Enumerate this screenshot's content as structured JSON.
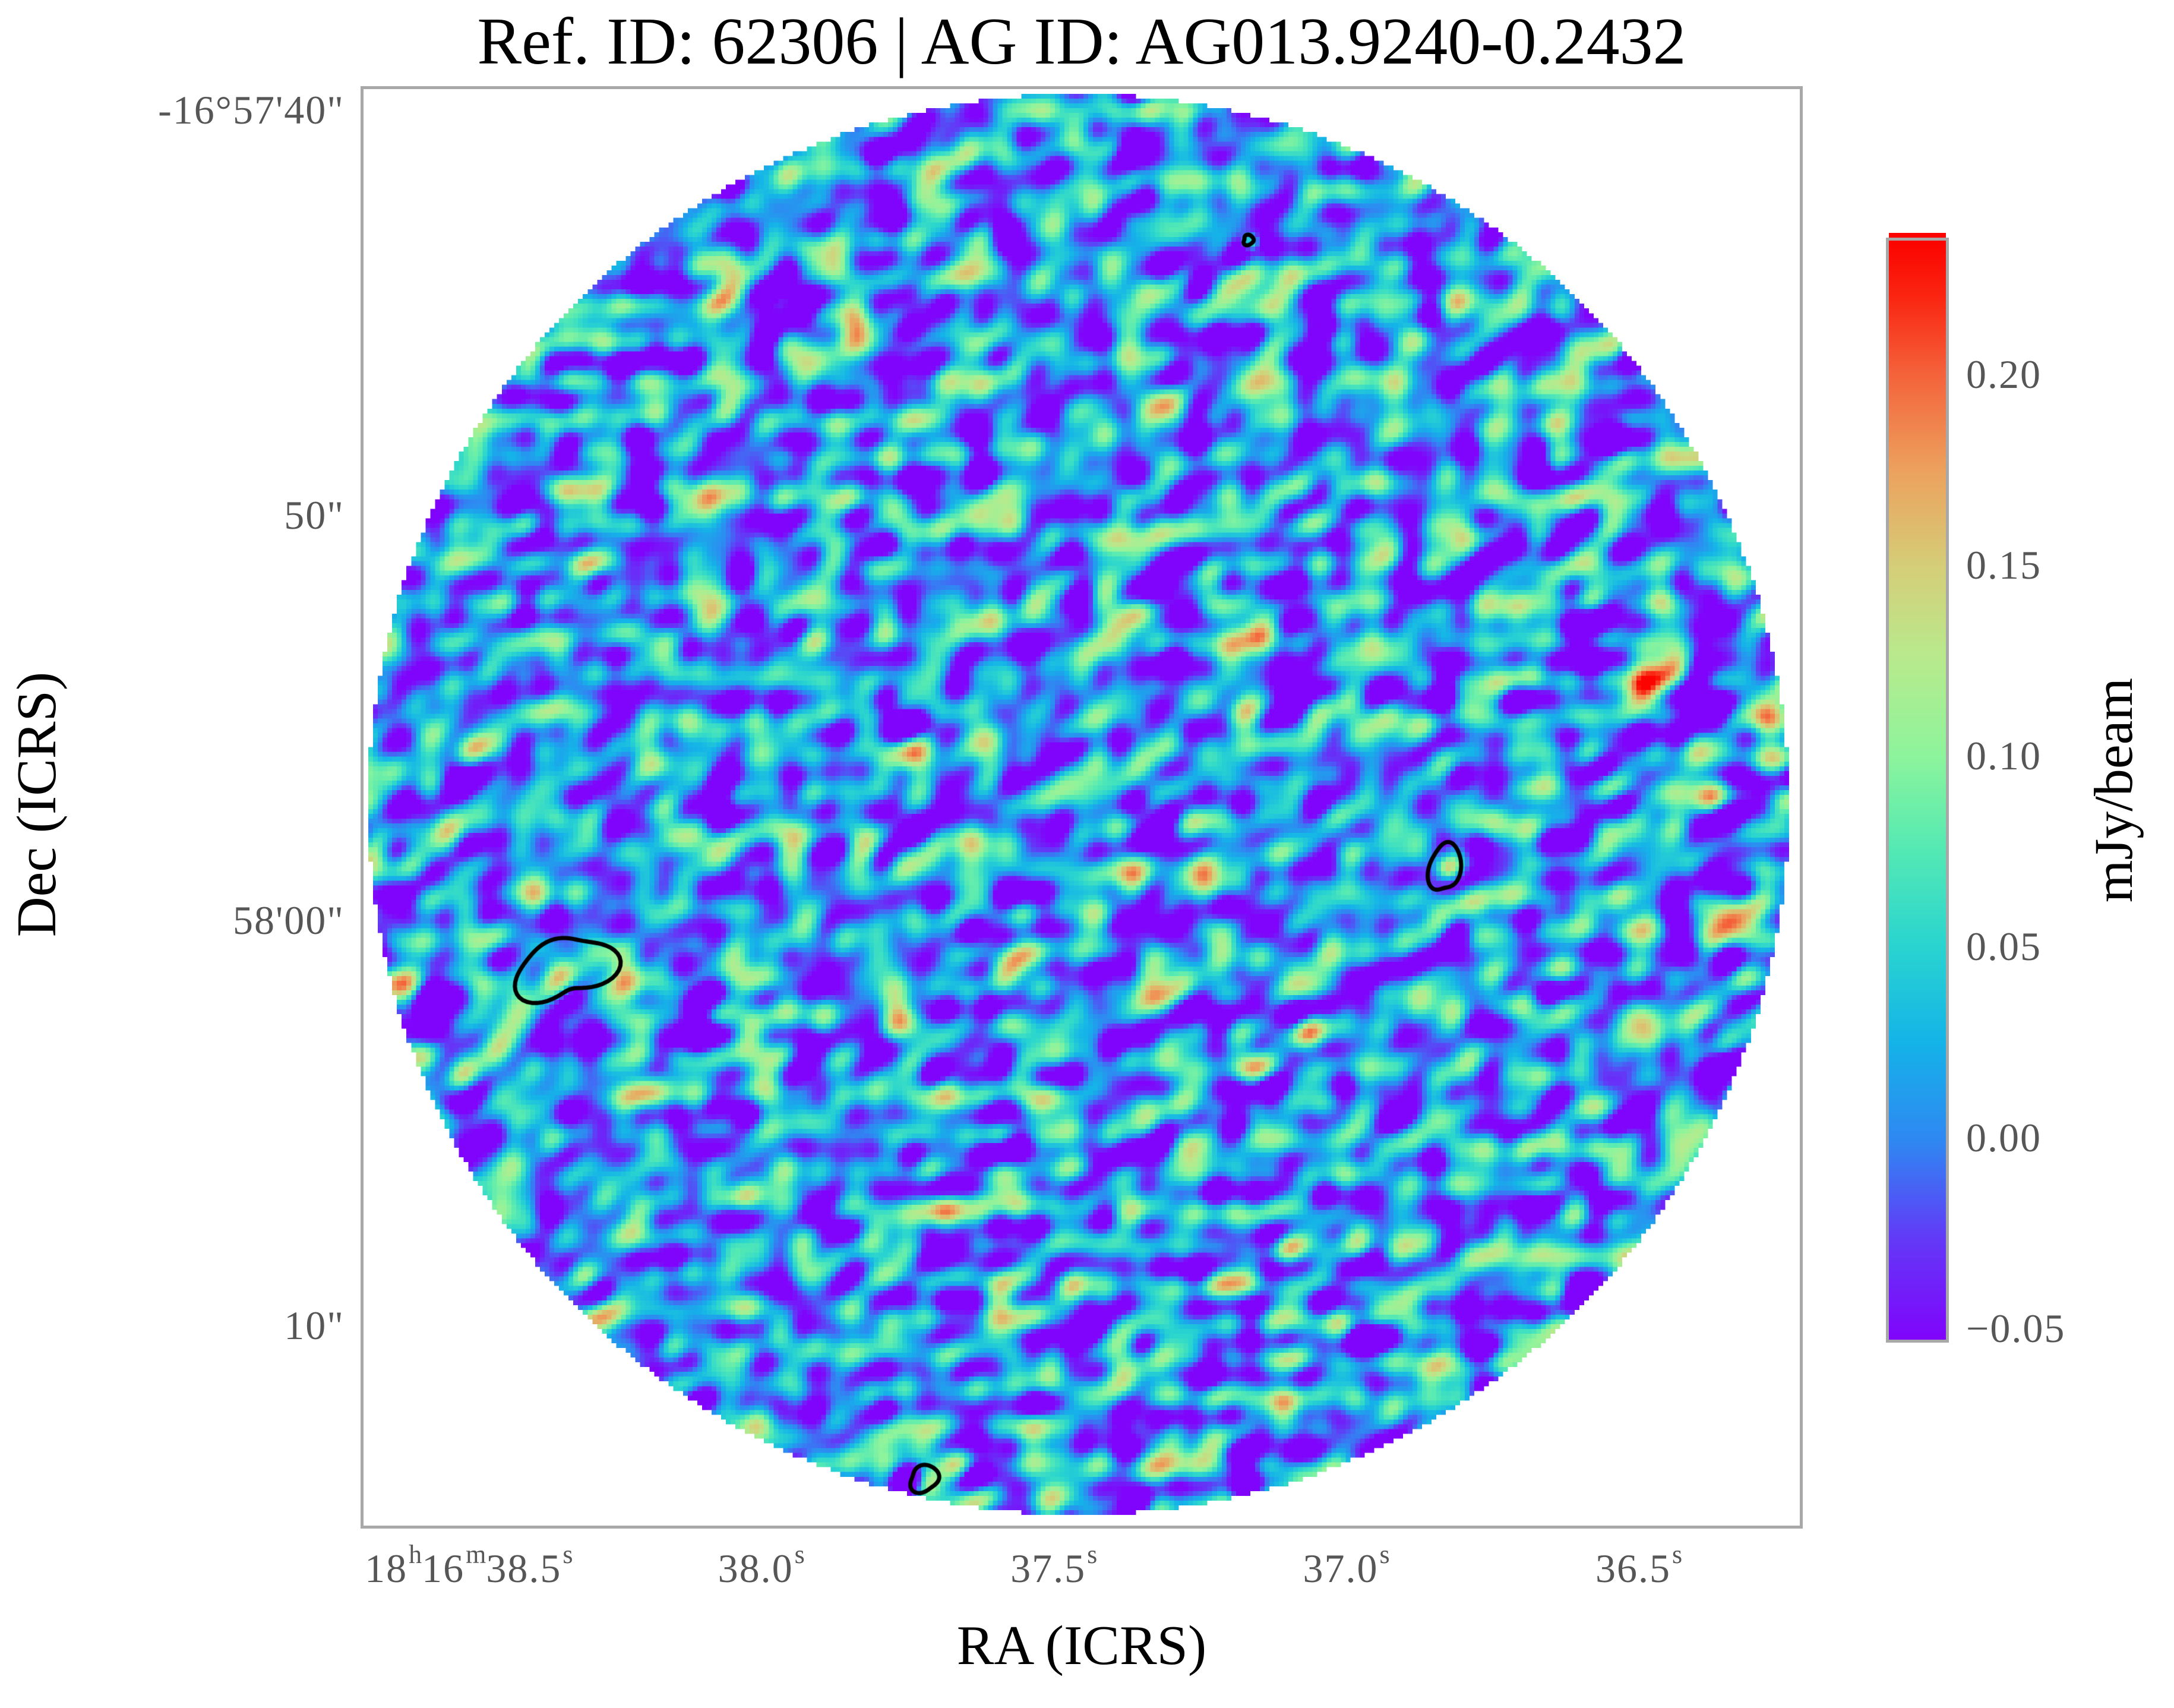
{
  "chart_data": {
    "type": "heatmap",
    "title": "Ref. ID: 62306 | AG ID: AG013.9240-0.2432",
    "xlabel": "RA (ICRS)",
    "ylabel": "Dec (ICRS)",
    "x_axis": {
      "unit": "RA seconds within 18h16m",
      "range": [
        38.68,
        36.235
      ],
      "ticks": [
        {
          "value": 38.5,
          "parts": [
            {
              "t": "18",
              "sup": "h"
            },
            {
              "t": "16",
              "sup": "m"
            },
            {
              "t": "38.5",
              "sup": "s"
            }
          ]
        },
        {
          "value": 38.0,
          "parts": [
            {
              "t": "38.0",
              "sup": "s"
            }
          ]
        },
        {
          "value": 37.5,
          "parts": [
            {
              "t": "37.5",
              "sup": "s"
            }
          ]
        },
        {
          "value": 37.0,
          "parts": [
            {
              "t": "37.0",
              "sup": "s"
            }
          ]
        },
        {
          "value": 36.5,
          "parts": [
            {
              "t": "36.5",
              "sup": "s"
            }
          ]
        }
      ]
    },
    "y_axis": {
      "unit": "Dec arcsec below -16deg57min",
      "range": [
        39.49,
        74.79
      ],
      "ticks": [
        {
          "value": 40,
          "label": "-16°57'40\""
        },
        {
          "value": 50,
          "label": "50\""
        },
        {
          "value": 60,
          "label": "58'00\""
        },
        {
          "value": 70,
          "label": "10\""
        }
      ]
    },
    "colorbar": {
      "label": "mJy/beam",
      "range_top": 0.235,
      "range_bottom": -0.053,
      "ticks": [
        {
          "value": 0.2,
          "label": "0.20"
        },
        {
          "value": 0.15,
          "label": "0.15"
        },
        {
          "value": 0.1,
          "label": "0.10"
        },
        {
          "value": 0.05,
          "label": "0.05"
        },
        {
          "value": 0.0,
          "label": "0.00"
        },
        {
          "value": -0.05,
          "label": "−0.05"
        }
      ]
    },
    "colormap_stops": [
      [
        0.0,
        "#8004fb"
      ],
      [
        0.09,
        "#6338f7"
      ],
      [
        0.18,
        "#2f87f2"
      ],
      [
        0.27,
        "#14b3e8"
      ],
      [
        0.36,
        "#2ad5cf"
      ],
      [
        0.45,
        "#56eab2"
      ],
      [
        0.53,
        "#8cf49c"
      ],
      [
        0.62,
        "#b8ea8d"
      ],
      [
        0.7,
        "#d4cf79"
      ],
      [
        0.79,
        "#eca25e"
      ],
      [
        0.88,
        "#f4613a"
      ],
      [
        0.95,
        "#fa2410"
      ],
      [
        1.0,
        "#fb0300"
      ]
    ],
    "field": {
      "grid": 300,
      "mean": 0.012,
      "sigma": 0.058,
      "seed": 20240613,
      "waves": 70,
      "min_wavelength": 7,
      "max_wavelength": 30,
      "fov_shape": "circle"
    },
    "contours": {
      "color": "#000000",
      "shapes": [
        {
          "fx": 0.1406,
          "fy": 0.6146,
          "rx": 24,
          "ry": 18,
          "rot": -20,
          "wobble": 0.35,
          "amp": 0.17,
          "sig": 3.0
        },
        {
          "fx": 0.756,
          "fy": 0.5438,
          "rx": 8,
          "ry": 14,
          "rot": 8,
          "wobble": 0.18,
          "amp": 0.16,
          "sig": 2.0
        },
        {
          "fx": 0.392,
          "fy": 0.9714,
          "rx": 8,
          "ry": 7,
          "rot": -10,
          "wobble": 0.2,
          "amp": 0.16,
          "sig": 2.0
        },
        {
          "fx": 0.6187,
          "fy": 0.1055,
          "rx": 3,
          "ry": 2.5,
          "rot": 0,
          "wobble": 0.25,
          "amp": 0.14,
          "sig": 1.2
        }
      ]
    },
    "styles": {
      "frame_color": "#a8a8a8",
      "tick_label_color": "#565656",
      "title_color": "#000000",
      "background": "#ffffff"
    }
  }
}
